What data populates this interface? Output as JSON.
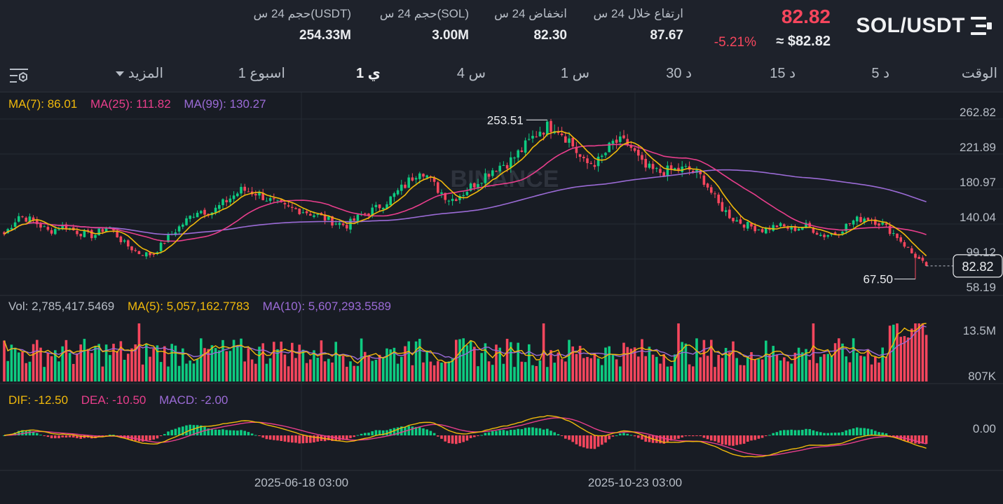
{
  "header": {
    "pair": "SOL/USDT",
    "last_price": "82.82",
    "usd_price": "≈ $82.82",
    "change_pct": "-5.21%",
    "stats": [
      {
        "label": "ارتفاع خلال 24 س",
        "value": "87.67"
      },
      {
        "label": "انخفاض 24 س",
        "value": "82.30"
      },
      {
        "label": "حجم 24 س(SOL)",
        "value": "3.00M"
      },
      {
        "label": "حجم 24 س(USDT)",
        "value": "254.33M"
      }
    ]
  },
  "toolbar": {
    "time_label": "الوقت",
    "intervals": [
      "5 د",
      "15 د",
      "30 د",
      "1 س",
      "4 س",
      "1 ي",
      "1 اسبوع"
    ],
    "active_interval": "1 ي",
    "more_label": "المزيد"
  },
  "colors": {
    "up": "#0ecb81",
    "down": "#f6465d",
    "ma7": "#f0b90b",
    "ma25": "#e83e8c",
    "ma99": "#9b6bd6",
    "background": "#181c24"
  },
  "chart_data": [
    {
      "type": "candlestick",
      "legend": {
        "ma7": "MA(7): 86.01",
        "ma25": "MA(25): 111.82",
        "ma99": "MA(99): 130.27"
      },
      "y_ticks": [
        "262.82",
        "221.89",
        "180.97",
        "140.04",
        "99.12",
        "58.19"
      ],
      "ylim": [
        58.19,
        262.82
      ],
      "last_price_label": "82.82",
      "high_marker": {
        "label": "253.51",
        "value": 253.51
      },
      "low_marker": {
        "label": "67.50",
        "value": 67.5
      },
      "x_ticks": [
        "2025-06-18 03:00",
        "2025-10-23 03:00"
      ],
      "watermark": "BINANCE",
      "close_anchors": [
        120,
        142,
        135,
        123,
        130,
        122,
        118,
        130,
        110,
        98,
        96,
        116,
        132,
        148,
        146,
        160,
        172,
        168,
        158,
        150,
        148,
        142,
        135,
        130,
        142,
        150,
        162,
        178,
        198,
        175,
        160,
        170,
        185,
        198,
        205,
        222,
        242,
        248,
        230,
        202,
        205,
        228,
        225,
        198,
        192,
        195,
        196,
        185,
        155,
        138,
        130,
        125,
        130,
        126,
        130,
        118,
        122,
        135,
        140,
        132,
        118,
        98,
        82.82
      ]
    },
    {
      "type": "bar",
      "name": "volume",
      "legend": {
        "vol": "Vol: 2,785,417.5469",
        "ma5": "MA(5): 5,057,162.7783",
        "ma10": "MA(10): 5,607,293.5589"
      },
      "y_ticks": [
        "13.5M",
        "807K"
      ]
    },
    {
      "type": "macd",
      "legend": {
        "dif": "DIF: -12.50",
        "dea": "DEA: -10.50",
        "macd": "MACD: -2.00"
      },
      "y_ticks": [
        "0.00"
      ]
    }
  ]
}
